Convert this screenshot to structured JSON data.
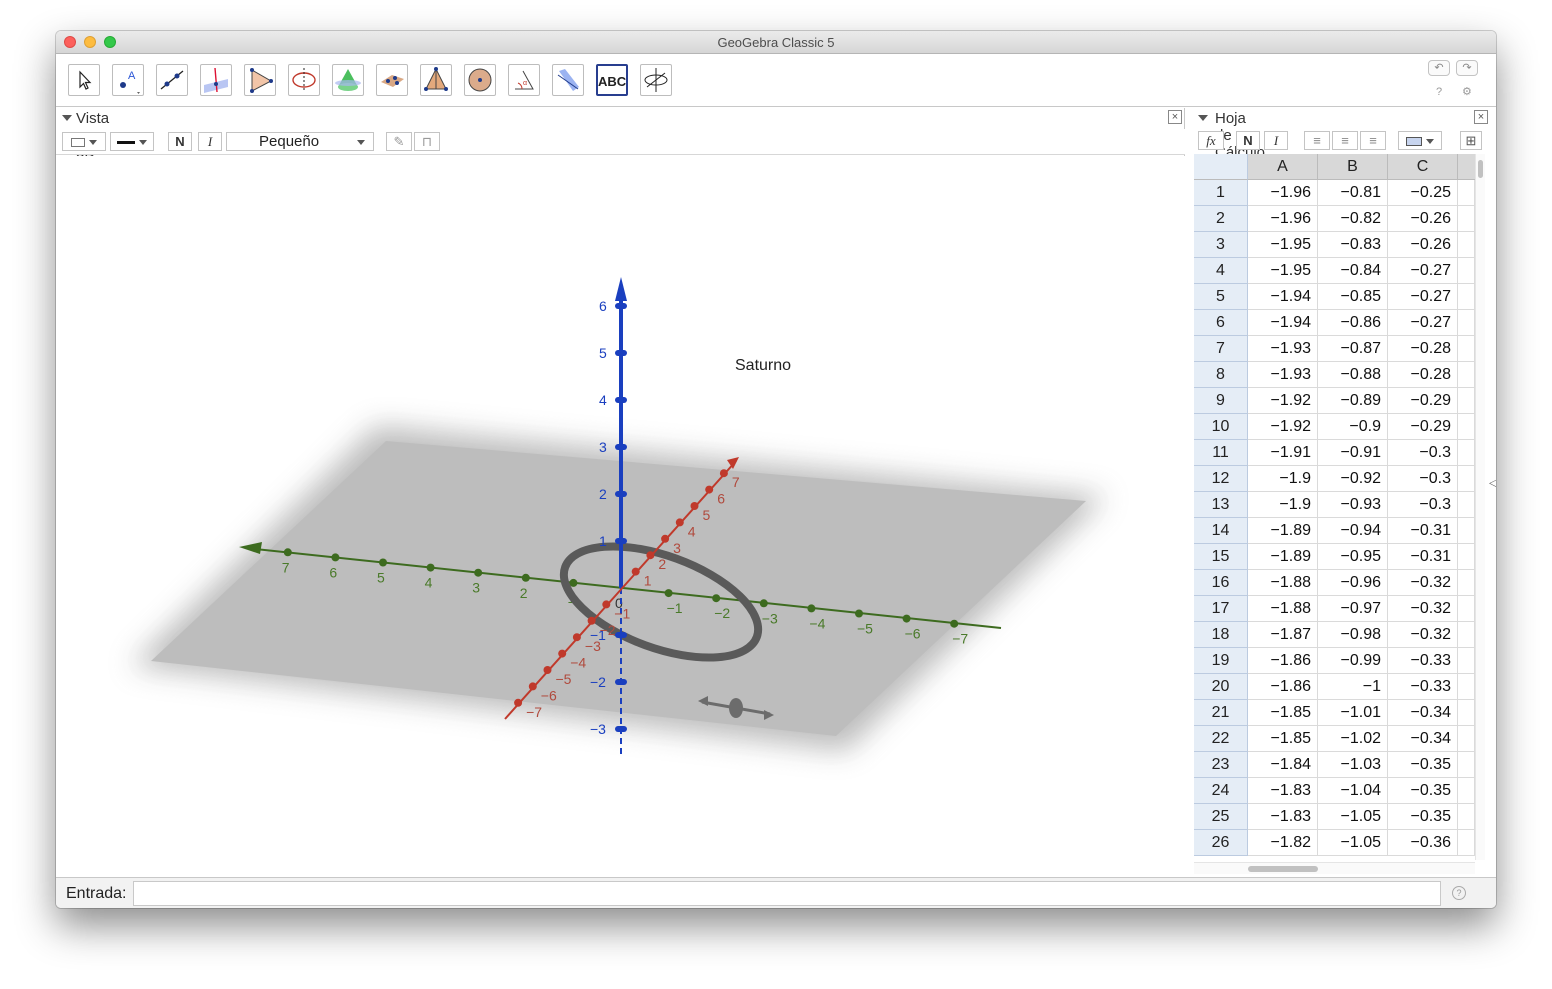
{
  "window": {
    "title": "GeoGebra Classic 5"
  },
  "toolbar": {
    "tools": [
      {
        "name": "move-tool",
        "icon": "arrow-pointer-icon"
      },
      {
        "name": "point-tool",
        "icon": "point-icon"
      },
      {
        "name": "line-tool",
        "icon": "line-icon"
      },
      {
        "name": "perpendicular-tool",
        "icon": "perpendicular-icon"
      },
      {
        "name": "polygon-tool",
        "icon": "triangle-icon"
      },
      {
        "name": "circle-tool",
        "icon": "circle-axis-icon"
      },
      {
        "name": "plane-tool",
        "icon": "plane-icon"
      },
      {
        "name": "intersect-tool",
        "icon": "intersect-icon"
      },
      {
        "name": "pyramid-tool",
        "icon": "pyramid-icon"
      },
      {
        "name": "sphere-tool",
        "icon": "sphere-icon"
      },
      {
        "name": "angle-tool",
        "icon": "angle-icon"
      },
      {
        "name": "reflect-tool",
        "icon": "reflect-icon"
      },
      {
        "name": "text-tool",
        "icon": "abc-icon",
        "label": "ABC",
        "selected": true
      },
      {
        "name": "rotate-view-tool",
        "icon": "rotate-view-icon"
      }
    ],
    "undo_label": "↶",
    "redo_label": "↷",
    "help_label": "?",
    "settings_label": "⚙"
  },
  "view3d": {
    "title": "Vista Gráfica 3D",
    "close_label": "×",
    "style_bar": {
      "bold_label": "N",
      "italic_label": "I",
      "font_size": "Pequeño"
    },
    "object_label": "Saturno",
    "axis_colors": {
      "x": "#c0392b",
      "y": "#3d6b1f",
      "z": "#1a3fbf"
    },
    "x_labels": [
      "7",
      "6",
      "5",
      "4",
      "3",
      "2",
      "1",
      "0",
      "−1",
      "−2",
      "−3",
      "−4",
      "−5",
      "−6",
      "−7"
    ],
    "y_labels": [
      "7",
      "6",
      "5",
      "4",
      "3",
      "2",
      "1",
      "0",
      "−1",
      "−2",
      "−3",
      "−4",
      "−5",
      "−6",
      "−7"
    ],
    "z_labels": [
      "6",
      "5",
      "4",
      "3",
      "2",
      "1",
      "0",
      "−1",
      "−2",
      "−3"
    ]
  },
  "spreadsheet": {
    "title": "Hoja de Cálculo",
    "close_label": "×",
    "style_bar": {
      "fx_label": "fx",
      "bold_label": "N",
      "italic_label": "I"
    },
    "columns": [
      "A",
      "B",
      "C"
    ],
    "rows": [
      {
        "n": "1",
        "A": "−1.96",
        "B": "−0.81",
        "C": "−0.25"
      },
      {
        "n": "2",
        "A": "−1.96",
        "B": "−0.82",
        "C": "−0.26"
      },
      {
        "n": "3",
        "A": "−1.95",
        "B": "−0.83",
        "C": "−0.26"
      },
      {
        "n": "4",
        "A": "−1.95",
        "B": "−0.84",
        "C": "−0.27"
      },
      {
        "n": "5",
        "A": "−1.94",
        "B": "−0.85",
        "C": "−0.27"
      },
      {
        "n": "6",
        "A": "−1.94",
        "B": "−0.86",
        "C": "−0.27"
      },
      {
        "n": "7",
        "A": "−1.93",
        "B": "−0.87",
        "C": "−0.28"
      },
      {
        "n": "8",
        "A": "−1.93",
        "B": "−0.88",
        "C": "−0.28"
      },
      {
        "n": "9",
        "A": "−1.92",
        "B": "−0.89",
        "C": "−0.29"
      },
      {
        "n": "10",
        "A": "−1.92",
        "B": "−0.9",
        "C": "−0.29"
      },
      {
        "n": "11",
        "A": "−1.91",
        "B": "−0.91",
        "C": "−0.3"
      },
      {
        "n": "12",
        "A": "−1.9",
        "B": "−0.92",
        "C": "−0.3"
      },
      {
        "n": "13",
        "A": "−1.9",
        "B": "−0.93",
        "C": "−0.3"
      },
      {
        "n": "14",
        "A": "−1.89",
        "B": "−0.94",
        "C": "−0.31"
      },
      {
        "n": "15",
        "A": "−1.89",
        "B": "−0.95",
        "C": "−0.31"
      },
      {
        "n": "16",
        "A": "−1.88",
        "B": "−0.96",
        "C": "−0.32"
      },
      {
        "n": "17",
        "A": "−1.88",
        "B": "−0.97",
        "C": "−0.32"
      },
      {
        "n": "18",
        "A": "−1.87",
        "B": "−0.98",
        "C": "−0.32"
      },
      {
        "n": "19",
        "A": "−1.86",
        "B": "−0.99",
        "C": "−0.33"
      },
      {
        "n": "20",
        "A": "−1.86",
        "B": "−1",
        "C": "−0.33"
      },
      {
        "n": "21",
        "A": "−1.85",
        "B": "−1.01",
        "C": "−0.34"
      },
      {
        "n": "22",
        "A": "−1.85",
        "B": "−1.02",
        "C": "−0.34"
      },
      {
        "n": "23",
        "A": "−1.84",
        "B": "−1.03",
        "C": "−0.35"
      },
      {
        "n": "24",
        "A": "−1.83",
        "B": "−1.04",
        "C": "−0.35"
      },
      {
        "n": "25",
        "A": "−1.83",
        "B": "−1.05",
        "C": "−0.35"
      },
      {
        "n": "26",
        "A": "−1.82",
        "B": "−1.05",
        "C": "−0.36"
      }
    ]
  },
  "input_bar": {
    "label": "Entrada:",
    "value": "",
    "help_label": "?"
  }
}
